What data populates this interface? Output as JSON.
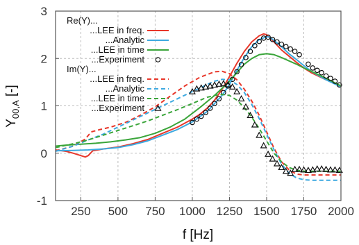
{
  "chart_data": {
    "type": "line",
    "xlabel": "f [Hz]",
    "ylabel": "Y",
    "ylabel_sub": "00,A",
    "ylabel_unit": " [-]",
    "xlim": [
      80,
      2000
    ],
    "ylim": [
      -1,
      3
    ],
    "xticks": [
      250,
      500,
      750,
      1000,
      1250,
      1500,
      1750,
      2000
    ],
    "yticks": [
      -1,
      0,
      1,
      2,
      3
    ],
    "grid": true,
    "legend_position": "top-left",
    "legend_groups": [
      {
        "title": "Re(Y)...",
        "entries": [
          0,
          1,
          2,
          3
        ]
      },
      {
        "title": "Im(Y)...",
        "entries": [
          4,
          5,
          6,
          7
        ]
      }
    ],
    "series": [
      {
        "name": "...LEE in freq.",
        "group": "Re",
        "style": "solid",
        "color": "#e8372a",
        "x": [
          80,
          150,
          200,
          250,
          280,
          300,
          330,
          400,
          500,
          600,
          700,
          800,
          900,
          1000,
          1050,
          1100,
          1150,
          1200,
          1250,
          1300,
          1350,
          1400,
          1450,
          1480,
          1500,
          1550,
          1600,
          1650,
          1700,
          1750,
          1800,
          1900,
          2000
        ],
        "y": [
          0.07,
          0.04,
          0.0,
          -0.05,
          -0.08,
          -0.05,
          0.05,
          0.09,
          0.13,
          0.2,
          0.29,
          0.42,
          0.55,
          0.72,
          0.82,
          0.95,
          1.12,
          1.35,
          1.62,
          1.9,
          2.15,
          2.35,
          2.48,
          2.52,
          2.5,
          2.35,
          2.18,
          2.05,
          1.92,
          1.8,
          1.7,
          1.55,
          1.42
        ]
      },
      {
        "name": "...Analytic",
        "group": "Re",
        "style": "solid",
        "color": "#3da9e0",
        "x": [
          80,
          200,
          300,
          400,
          500,
          600,
          700,
          800,
          900,
          1000,
          1100,
          1200,
          1250,
          1300,
          1350,
          1400,
          1450,
          1500,
          1520,
          1550,
          1600,
          1650,
          1700,
          1750,
          1800,
          1900,
          2000
        ],
        "y": [
          0.05,
          0.06,
          0.07,
          0.09,
          0.12,
          0.18,
          0.26,
          0.38,
          0.5,
          0.66,
          0.88,
          1.22,
          1.45,
          1.75,
          2.02,
          2.25,
          2.4,
          2.46,
          2.45,
          2.38,
          2.25,
          2.1,
          1.98,
          1.85,
          1.73,
          1.55,
          1.4
        ]
      },
      {
        "name": "...LEE in time",
        "group": "Re",
        "style": "solid",
        "color": "#3aa53a",
        "x": [
          80,
          150,
          250,
          350,
          450,
          550,
          650,
          750,
          850,
          950,
          1050,
          1150,
          1250,
          1300,
          1350,
          1400,
          1450,
          1500,
          1550,
          1600,
          1650,
          1700,
          1750,
          1800,
          1900,
          2000
        ],
        "y": [
          0.15,
          0.17,
          0.19,
          0.21,
          0.24,
          0.28,
          0.33,
          0.42,
          0.55,
          0.72,
          0.96,
          1.22,
          1.52,
          1.7,
          1.88,
          2.0,
          2.08,
          2.1,
          2.08,
          2.02,
          1.95,
          1.88,
          1.8,
          1.73,
          1.58,
          1.42
        ]
      },
      {
        "name": "...Experiment",
        "group": "Re",
        "style": "marker-circle",
        "color": "#111111",
        "x": [
          1000,
          1030,
          1060,
          1090,
          1120,
          1150,
          1180,
          1210,
          1240,
          1270,
          1300,
          1330,
          1360,
          1390,
          1420,
          1450,
          1480,
          1510,
          1540,
          1570,
          1600,
          1630,
          1660,
          1690,
          1720,
          1780,
          1810,
          1840,
          1870,
          1900,
          1930,
          1960,
          1990
        ],
        "y": [
          0.65,
          0.72,
          0.78,
          0.86,
          0.95,
          1.05,
          1.15,
          1.28,
          1.42,
          1.56,
          1.72,
          1.87,
          2.02,
          2.15,
          2.27,
          2.36,
          2.43,
          2.45,
          2.4,
          2.35,
          2.3,
          2.25,
          2.2,
          2.15,
          2.08,
          1.88,
          1.8,
          1.75,
          1.7,
          1.63,
          1.58,
          1.52,
          1.44
        ]
      },
      {
        "name": "...LEE in freq.",
        "group": "Im",
        "style": "dashed",
        "color": "#e8372a",
        "x": [
          80,
          200,
          280,
          320,
          380,
          450,
          550,
          650,
          750,
          850,
          950,
          1050,
          1150,
          1200,
          1250,
          1300,
          1350,
          1400,
          1450,
          1500,
          1550,
          1600,
          1650,
          1700,
          1750,
          1800,
          1900,
          2000
        ],
        "y": [
          0.05,
          0.15,
          0.3,
          0.45,
          0.5,
          0.55,
          0.65,
          0.8,
          0.98,
          1.2,
          1.42,
          1.6,
          1.72,
          1.73,
          1.68,
          1.55,
          1.35,
          1.1,
          0.8,
          0.45,
          0.1,
          -0.18,
          -0.35,
          -0.44,
          -0.46,
          -0.46,
          -0.46,
          -0.46
        ]
      },
      {
        "name": "...Analytic",
        "group": "Im",
        "style": "dashed",
        "color": "#3da9e0",
        "x": [
          80,
          200,
          300,
          400,
          500,
          600,
          700,
          800,
          900,
          1000,
          1100,
          1150,
          1200,
          1250,
          1300,
          1350,
          1400,
          1450,
          1500,
          1550,
          1600,
          1650,
          1700,
          1750,
          1800,
          1900,
          2000
        ],
        "y": [
          0.04,
          0.15,
          0.28,
          0.4,
          0.55,
          0.7,
          0.85,
          1.0,
          1.15,
          1.3,
          1.45,
          1.52,
          1.56,
          1.55,
          1.45,
          1.28,
          1.03,
          0.73,
          0.4,
          0.07,
          -0.23,
          -0.42,
          -0.52,
          -0.56,
          -0.57,
          -0.57,
          -0.57
        ]
      },
      {
        "name": "...LEE in time",
        "group": "Im",
        "style": "dashed",
        "color": "#3aa53a",
        "x": [
          80,
          200,
          300,
          400,
          500,
          600,
          700,
          800,
          900,
          1000,
          1100,
          1150,
          1200,
          1250,
          1300,
          1350,
          1400,
          1450,
          1500,
          1550,
          1600,
          1650,
          1700,
          1750,
          1800,
          1900,
          2000
        ],
        "y": [
          0.12,
          0.2,
          0.28,
          0.38,
          0.48,
          0.58,
          0.68,
          0.8,
          0.92,
          1.05,
          1.18,
          1.22,
          1.24,
          1.22,
          1.12,
          0.96,
          0.76,
          0.52,
          0.26,
          0.0,
          -0.18,
          -0.3,
          -0.36,
          -0.38,
          -0.38,
          -0.38,
          -0.38
        ]
      },
      {
        "name": "...Experiment",
        "group": "Im",
        "style": "marker-triangle",
        "color": "#111111",
        "x": [
          1000,
          1030,
          1060,
          1090,
          1120,
          1150,
          1180,
          1210,
          1240,
          1270,
          1300,
          1330,
          1360,
          1390,
          1420,
          1450,
          1480,
          1510,
          1540,
          1570,
          1600,
          1630,
          1660,
          1690,
          1720,
          1750,
          1780,
          1810,
          1840,
          1870,
          1900,
          1930,
          1960,
          1990
        ],
        "y": [
          1.3,
          1.36,
          1.38,
          1.4,
          1.42,
          1.44,
          1.46,
          1.47,
          1.45,
          1.4,
          1.3,
          1.15,
          0.98,
          0.8,
          0.6,
          0.38,
          0.16,
          -0.02,
          -0.12,
          -0.22,
          -0.3,
          -0.38,
          -0.42,
          -0.34,
          -0.34,
          -0.35,
          -0.36,
          -0.35,
          -0.33,
          -0.33,
          -0.34,
          -0.35,
          -0.35,
          -0.36
        ]
      }
    ]
  }
}
